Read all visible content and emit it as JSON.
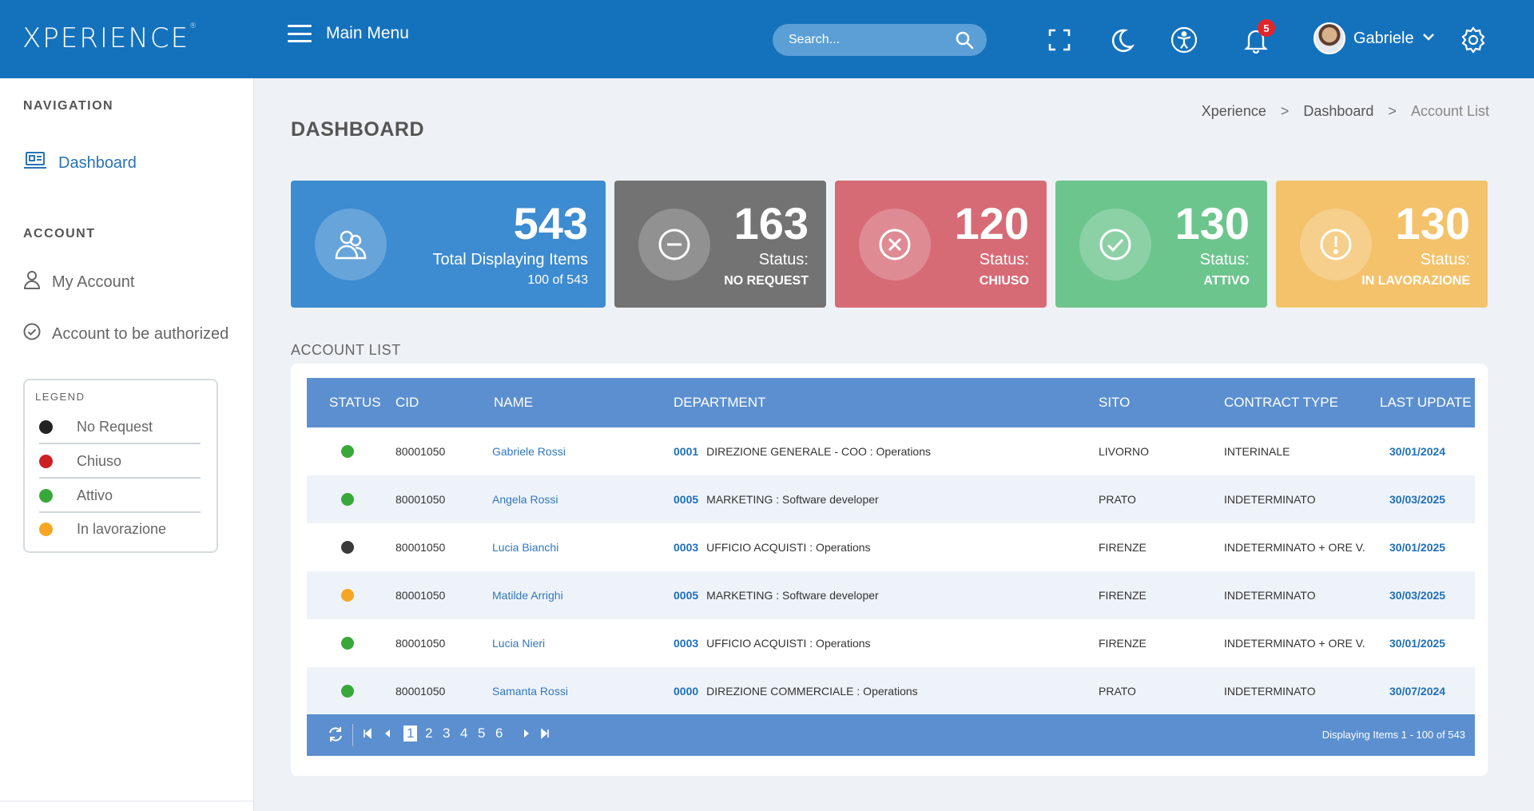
{
  "header": {
    "logo": "XPERIENCE",
    "menu_label": "Main Menu",
    "search_placeholder": "Search...",
    "notification_count": "5",
    "user_name": "Gabriele"
  },
  "sidebar": {
    "nav_heading": "NAVIGATION",
    "nav_items": [
      {
        "label": "Dashboard"
      }
    ],
    "account_heading": "ACCOUNT",
    "account_items": [
      {
        "label": "My Account"
      },
      {
        "label": "Account to be authorized"
      }
    ],
    "legend": {
      "title": "LEGEND",
      "items": [
        {
          "label": "No Request",
          "color": "#222222"
        },
        {
          "label": "Chiuso",
          "color": "#cc1f24"
        },
        {
          "label": "Attivo",
          "color": "#39a83a"
        },
        {
          "label": "In lavorazione",
          "color": "#f5a623"
        }
      ]
    }
  },
  "page": {
    "title": "DASHBOARD",
    "breadcrumb": [
      "Xperience",
      "Dashboard",
      "Account List"
    ]
  },
  "cards": [
    {
      "value": "543",
      "line1": "Total Displaying Items",
      "line2": "100 of 543",
      "color": "#3d8bd0"
    },
    {
      "value": "163",
      "line1": "Status:",
      "line2": "NO REQUEST",
      "color": "#737373"
    },
    {
      "value": "120",
      "line1": "Status:",
      "line2": "CHIUSO",
      "color": "#d66b76"
    },
    {
      "value": "130",
      "line1": "Status:",
      "line2": "ATTIVO",
      "color": "#6cc58d"
    },
    {
      "value": "130",
      "line1": "Status:",
      "line2": "IN LAVORAZIONE",
      "color": "#f3c26b"
    }
  ],
  "account_list": {
    "title": "ACCOUNT LIST",
    "columns": [
      "STATUS",
      "CID",
      "NAME",
      "DEPARTMENT",
      "SITO",
      "CONTRACT TYPE",
      "LAST UPDATE"
    ],
    "rows": [
      {
        "status_color": "#39a83a",
        "cid": "80001050",
        "name": "Gabriele Rossi",
        "dept_code": "0001",
        "dept": "DIREZIONE GENERALE - COO : Operations",
        "sito": "LIVORNO",
        "contract": "INTERINALE",
        "last_update": "30/01/2024"
      },
      {
        "status_color": "#39a83a",
        "cid": "80001050",
        "name": "Angela Rossi",
        "dept_code": "0005",
        "dept": "MARKETING : Software developer",
        "sito": "PRATO",
        "contract": "INDETERMINATO",
        "last_update": "30/03/2025"
      },
      {
        "status_color": "#3a3a3a",
        "cid": "80001050",
        "name": "Lucia Bianchi",
        "dept_code": "0003",
        "dept": "UFFICIO ACQUISTI : Operations",
        "sito": "FIRENZE",
        "contract": "INDETERMINATO + ORE V.",
        "last_update": "30/01/2025"
      },
      {
        "status_color": "#f5a623",
        "cid": "80001050",
        "name": "Matilde Arrighi",
        "dept_code": "0005",
        "dept": "MARKETING : Software developer",
        "sito": "FIRENZE",
        "contract": "INDETERMINATO",
        "last_update": "30/03/2025"
      },
      {
        "status_color": "#39a83a",
        "cid": "80001050",
        "name": "Lucia Nieri",
        "dept_code": "0003",
        "dept": "UFFICIO ACQUISTI : Operations",
        "sito": "FIRENZE",
        "contract": "INDETERMINATO + ORE V.",
        "last_update": "30/01/2025"
      },
      {
        "status_color": "#39a83a",
        "cid": "80001050",
        "name": "Samanta Rossi",
        "dept_code": "0000",
        "dept": "DIREZIONE COMMERCIALE : Operations",
        "sito": "PRATO",
        "contract": "INDETERMINATO",
        "last_update": "30/07/2024"
      }
    ],
    "pager": {
      "pages": [
        "1",
        "2",
        "3",
        "4",
        "5",
        "6"
      ],
      "current": "1",
      "info": "Displaying Items 1 - 100 of 543"
    }
  },
  "colors": {
    "header_bg": "#1472bd",
    "table_header": "#5b8fd0",
    "link": "#3177c0"
  }
}
